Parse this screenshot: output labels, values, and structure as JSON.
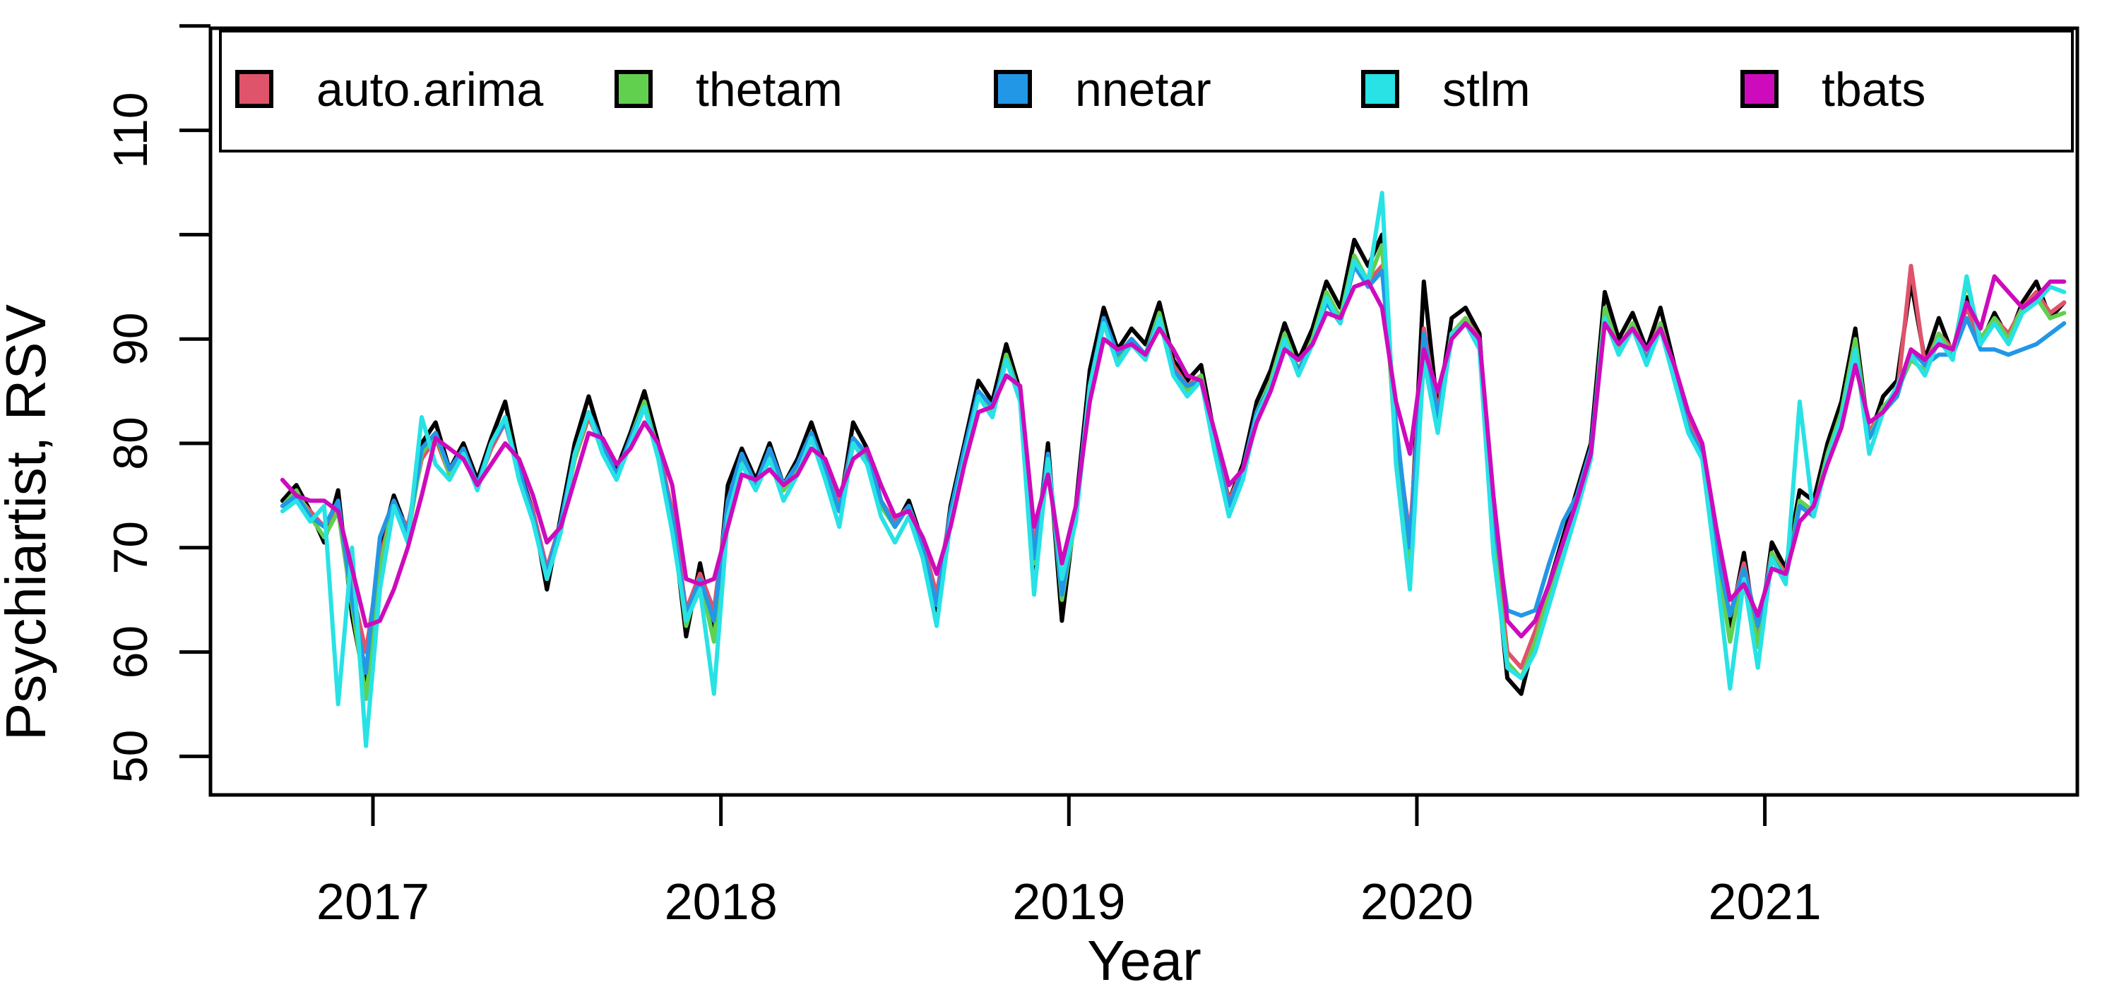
{
  "figure": {
    "background": "#ffffff"
  },
  "legend": {
    "position": "top",
    "items": [
      {
        "label": "auto.arima",
        "color": "#DF536B"
      },
      {
        "label": "thetam",
        "color": "#61D04F"
      },
      {
        "label": "nnetar",
        "color": "#2297E6"
      },
      {
        "label": "stlm",
        "color": "#28E2E5"
      },
      {
        "label": "tbats",
        "color": "#CD0BBC"
      }
    ]
  },
  "chart_data": {
    "type": "line",
    "title": "",
    "xlabel": "Year",
    "ylabel": "Psychiartist, RSV",
    "grid": false,
    "legend_position": "top",
    "xlim": [
      2016.53,
      2021.9
    ],
    "ylim": [
      46.3,
      120.2
    ],
    "x_ticks": [
      {
        "value": 2017,
        "label": "2017"
      },
      {
        "value": 2018,
        "label": "2018"
      },
      {
        "value": 2019,
        "label": "2019"
      },
      {
        "value": 2020,
        "label": "2020"
      },
      {
        "value": 2021,
        "label": "2021"
      }
    ],
    "y_ticks": [
      {
        "value": 50,
        "label": "50"
      },
      {
        "value": 60,
        "label": "60"
      },
      {
        "value": 70,
        "label": "70"
      },
      {
        "value": 80,
        "label": "80"
      },
      {
        "value": 90,
        "label": "90"
      },
      {
        "value": 100,
        "label": ""
      },
      {
        "value": 110,
        "label": "110"
      },
      {
        "value": 120,
        "label": ""
      }
    ],
    "x": [
      2016.74,
      2016.78,
      2016.82,
      2016.86,
      2016.9,
      2016.94,
      2016.98,
      2017.02,
      2017.06,
      2017.1,
      2017.14,
      2017.18,
      2017.22,
      2017.26,
      2017.3,
      2017.34,
      2017.38,
      2017.42,
      2017.46,
      2017.5,
      2017.54,
      2017.58,
      2017.62,
      2017.66,
      2017.7,
      2017.74,
      2017.78,
      2017.82,
      2017.86,
      2017.9,
      2017.94,
      2017.98,
      2018.02,
      2018.06,
      2018.1,
      2018.14,
      2018.18,
      2018.22,
      2018.26,
      2018.3,
      2018.34,
      2018.38,
      2018.42,
      2018.46,
      2018.5,
      2018.54,
      2018.58,
      2018.62,
      2018.66,
      2018.7,
      2018.74,
      2018.78,
      2018.82,
      2018.86,
      2018.9,
      2018.94,
      2018.98,
      2019.02,
      2019.06,
      2019.1,
      2019.14,
      2019.18,
      2019.22,
      2019.26,
      2019.3,
      2019.34,
      2019.38,
      2019.42,
      2019.46,
      2019.5,
      2019.54,
      2019.58,
      2019.62,
      2019.66,
      2019.7,
      2019.74,
      2019.78,
      2019.82,
      2019.86,
      2019.9,
      2019.94,
      2019.98,
      2020.02,
      2020.06,
      2020.1,
      2020.14,
      2020.18,
      2020.22,
      2020.26,
      2020.3,
      2020.34,
      2020.38,
      2020.42,
      2020.46,
      2020.5,
      2020.54,
      2020.58,
      2020.62,
      2020.66,
      2020.7,
      2020.74,
      2020.78,
      2020.82,
      2020.86,
      2020.9,
      2020.94,
      2020.98,
      2021.02,
      2021.06,
      2021.1,
      2021.14,
      2021.18,
      2021.22,
      2021.26,
      2021.3,
      2021.34,
      2021.38,
      2021.42,
      2021.46,
      2021.5,
      2021.54,
      2021.58,
      2021.62,
      2021.66,
      2021.7,
      2021.74,
      2021.78,
      2021.82,
      2021.86
    ],
    "series": [
      {
        "name": "observed",
        "color": "#000000",
        "values": [
          74.5,
          76,
          73.5,
          70.5,
          75.5,
          63.5,
          56.5,
          70,
          75,
          71.5,
          80,
          82,
          77.5,
          80,
          76.5,
          80.5,
          84,
          77.5,
          73.5,
          66,
          73,
          80,
          84.5,
          80,
          77.5,
          81,
          85,
          80,
          73,
          61.5,
          68.5,
          62,
          76,
          79.5,
          76.5,
          80,
          76,
          78.5,
          82,
          78,
          73.5,
          82,
          79.5,
          74.5,
          72,
          74.5,
          70.5,
          64,
          74,
          80,
          86,
          84,
          89.5,
          85,
          68,
          80,
          63,
          74,
          87,
          93,
          89,
          91,
          89.5,
          93.5,
          88,
          86,
          87.5,
          80.5,
          74.5,
          78,
          84,
          87,
          91.5,
          88,
          91,
          95.5,
          93,
          99.5,
          97,
          100,
          80,
          69.5,
          95.5,
          83,
          92,
          93,
          90.5,
          71,
          57.5,
          56,
          61.5,
          66.5,
          71,
          75.5,
          80,
          94.5,
          90,
          92.5,
          89,
          93,
          87.5,
          82.5,
          80,
          70,
          62.5,
          69.5,
          60.5,
          70.5,
          68,
          75.5,
          74.5,
          80,
          84,
          91,
          80.5,
          84.5,
          86,
          95.5,
          88,
          92,
          88.5,
          94,
          89.5,
          92.5,
          90,
          93.5,
          95.5,
          92,
          93.5
        ]
      },
      {
        "name": "auto.arima",
        "color": "#DF536B",
        "values": [
          74,
          75,
          73.5,
          72,
          74,
          66,
          60,
          69,
          74,
          72,
          78.5,
          80.5,
          77,
          79,
          76,
          79.5,
          82,
          77,
          73.5,
          68,
          72.5,
          78.5,
          82.5,
          79.5,
          77,
          80,
          83.5,
          79.5,
          73.5,
          64,
          67.5,
          64,
          74.5,
          78.5,
          76,
          78.5,
          75.5,
          77.5,
          80.5,
          77.5,
          74,
          80.5,
          78.5,
          74.5,
          72.5,
          74,
          70.5,
          65.5,
          73.5,
          79,
          84.5,
          83,
          88,
          84.5,
          70,
          78.5,
          66,
          73.5,
          85,
          91.5,
          88.5,
          90,
          88.5,
          92,
          87.5,
          85.5,
          86.5,
          80,
          74.5,
          77.5,
          83,
          86,
          90.5,
          87,
          90,
          94,
          92,
          97.5,
          95.5,
          97,
          81,
          71,
          91,
          83,
          90.5,
          92,
          90,
          72,
          60,
          58.5,
          62,
          66,
          70.5,
          74.5,
          79,
          92.5,
          89,
          91.5,
          88.5,
          91.5,
          87,
          82,
          79.5,
          70.5,
          63.5,
          68.5,
          62,
          69.5,
          67.5,
          74,
          73.5,
          78.5,
          83,
          89.5,
          81,
          83.5,
          84.5,
          97,
          87.5,
          90.5,
          89,
          93,
          90,
          92,
          90.5,
          93,
          94.5,
          92.5,
          93.5
        ]
      },
      {
        "name": "thetam",
        "color": "#61D04F",
        "values": [
          74,
          75.5,
          73,
          71,
          73.5,
          64.5,
          55.5,
          68,
          74.5,
          71,
          79,
          81,
          77,
          79.5,
          76,
          80,
          82.5,
          77,
          73,
          67,
          72,
          78.5,
          83,
          79.5,
          77,
          80.5,
          84,
          79,
          72.5,
          62.5,
          67,
          61,
          74.5,
          78.5,
          76,
          79,
          75.5,
          77.5,
          81,
          77.5,
          73.5,
          80.5,
          78.5,
          74,
          72,
          74,
          70,
          64.5,
          73,
          79,
          85,
          83,
          88.5,
          84.5,
          68.5,
          79,
          65,
          73,
          85.5,
          92,
          88,
          90,
          88.5,
          92.5,
          87,
          85,
          86.5,
          79.5,
          74,
          77,
          83,
          86,
          90.5,
          87,
          90,
          94.5,
          92,
          98,
          95.5,
          99,
          79,
          68.5,
          90,
          82,
          90.5,
          92,
          89.5,
          70.5,
          59,
          57.5,
          61,
          65.5,
          70,
          74,
          79,
          93,
          89,
          91.5,
          88,
          91.5,
          86.5,
          81.5,
          79,
          69.5,
          61,
          68,
          60.5,
          69.5,
          67,
          74.5,
          73.5,
          79,
          83,
          90,
          80.5,
          83.5,
          85,
          88,
          87,
          90.5,
          88.5,
          95.5,
          90,
          92,
          90,
          93,
          94,
          92,
          92.5
        ]
      },
      {
        "name": "nnetar",
        "color": "#2297E6",
        "values": [
          74,
          75,
          73,
          72,
          74.5,
          65,
          58,
          71,
          74.5,
          71.5,
          79.5,
          81,
          77.5,
          79.5,
          76,
          80,
          82,
          77.5,
          73,
          67.5,
          72.5,
          79,
          83,
          80,
          77,
          80.5,
          83.5,
          79,
          73,
          63.5,
          67,
          63,
          74.5,
          79,
          76,
          79.5,
          76,
          78,
          81,
          77.5,
          73.5,
          80.5,
          79,
          74.5,
          72,
          74,
          70,
          64.5,
          73.5,
          79.5,
          85,
          83.5,
          88,
          84.5,
          69,
          79,
          65.5,
          73.5,
          85.5,
          92,
          88.5,
          90,
          88.5,
          92,
          87,
          85.5,
          86,
          79.5,
          74,
          77.5,
          83,
          85.5,
          89.5,
          87,
          89.5,
          93.5,
          91.5,
          97,
          95,
          96.5,
          82,
          70,
          90.5,
          82.5,
          90,
          91.5,
          89.5,
          73,
          64,
          63.5,
          64,
          68.5,
          72.5,
          75,
          79.5,
          92,
          88.5,
          91,
          88,
          91,
          86.5,
          81.5,
          79,
          70,
          63.5,
          68,
          62.5,
          69,
          67,
          74,
          73,
          78.5,
          82.5,
          89,
          80.5,
          83,
          84.5,
          89,
          87.5,
          88.5,
          88.5,
          92,
          89,
          89,
          88.5,
          89,
          89.5,
          90.5,
          91.5
        ]
      },
      {
        "name": "stlm",
        "color": "#28E2E5",
        "values": [
          73.5,
          74.5,
          72.5,
          74,
          55,
          70,
          51,
          66,
          74,
          70.5,
          82.5,
          78,
          76.5,
          79,
          75.5,
          80,
          82.5,
          76.5,
          72.5,
          67,
          71.5,
          79,
          83,
          79,
          76.5,
          80,
          83.5,
          78.5,
          71.5,
          63,
          66,
          56,
          73,
          78,
          75.5,
          78.5,
          74.5,
          77,
          80.5,
          76.5,
          72,
          80,
          78,
          73,
          70.5,
          73,
          69,
          62.5,
          72.5,
          78.5,
          84.5,
          82.5,
          88,
          84,
          65.5,
          78.5,
          67,
          72.5,
          85.5,
          91.5,
          87.5,
          89.5,
          88,
          92,
          86.5,
          84.5,
          86,
          79,
          73,
          76.5,
          82.5,
          85.5,
          90,
          86.5,
          89.5,
          94,
          91.5,
          97.5,
          95.5,
          104,
          78,
          66,
          88,
          81,
          90.5,
          91.5,
          89,
          69.5,
          58.5,
          57.5,
          60,
          64.5,
          69,
          73.5,
          78.5,
          92,
          88.5,
          91,
          87.5,
          91,
          86,
          81,
          78.5,
          68,
          56.5,
          67,
          58.5,
          69,
          66.5,
          84,
          73,
          78.5,
          82.5,
          89,
          79,
          83,
          85.5,
          88.5,
          86.5,
          90,
          88,
          96,
          89.5,
          91.5,
          89.5,
          92.5,
          93.5,
          95,
          94.5
        ]
      },
      {
        "name": "tbats",
        "color": "#CD0BBC",
        "values": [
          76.5,
          75,
          74.5,
          74.5,
          73.5,
          68,
          62.5,
          63,
          66,
          70,
          75,
          80.5,
          79.5,
          78.5,
          76,
          78,
          80,
          78.5,
          75,
          70.5,
          72,
          76.5,
          81,
          80.5,
          78,
          79.5,
          82,
          80,
          76,
          67,
          66.5,
          67,
          72,
          77,
          76.5,
          77.5,
          76,
          77,
          79.5,
          78.5,
          75,
          78.5,
          79.5,
          76,
          73,
          73.5,
          71,
          67.5,
          72,
          78,
          83,
          83.5,
          86.5,
          85.5,
          72,
          77,
          68.5,
          74,
          84,
          90,
          89,
          89.5,
          88.5,
          91,
          89,
          86.5,
          86,
          81,
          76,
          77.5,
          82,
          85,
          89,
          88,
          89.5,
          92.5,
          92,
          95,
          95.5,
          93,
          84,
          79,
          89,
          85,
          90,
          91.5,
          90,
          75,
          63,
          61.5,
          63,
          66.5,
          70.5,
          74.5,
          79,
          91.5,
          89.5,
          91,
          89,
          91,
          87.5,
          83,
          80,
          72,
          65,
          66.5,
          63.5,
          68,
          67.5,
          72.5,
          74,
          78,
          81.5,
          87.5,
          82,
          83,
          85,
          89,
          88,
          89.5,
          89,
          93.5,
          91,
          96,
          94.5,
          93,
          94,
          95.5,
          95.5
        ]
      }
    ]
  }
}
